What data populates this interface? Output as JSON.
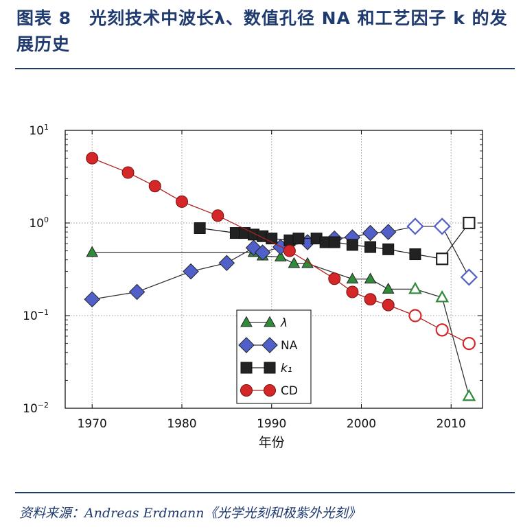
{
  "header": {
    "title": "图表 8　光刻技术中波长λ、数值孔径 NA 和工艺因子 k 的发展历史"
  },
  "footer": {
    "source": "资料来源：Andreas Erdmann《光学光刻和极紫外光刻》"
  },
  "colors": {
    "title_blue": "#1f3a6e",
    "lambda_green": "#2f8a3a",
    "na_blue": "#5060c8",
    "k1_black": "#222222",
    "cd_red": "#d42828",
    "line_dark": "#333333",
    "line_red": "#b02020"
  },
  "chart_data": {
    "type": "line",
    "xlabel": "年份",
    "ylabel": "",
    "xlim": [
      1967,
      2013.5
    ],
    "ylim": [
      0.01,
      10
    ],
    "yscale": "log",
    "grid": true,
    "legend_position": "lower-center",
    "x_ticks": [
      "1970",
      "1980",
      "1990",
      "2000",
      "2010"
    ],
    "y_ticks": [
      {
        "base": "10",
        "exp": "1"
      },
      {
        "base": "10",
        "exp": "0"
      },
      {
        "base": "10",
        "exp": "−1"
      },
      {
        "base": "10",
        "exp": "−2"
      }
    ],
    "series": [
      {
        "name": "λ",
        "marker": "triangle",
        "color": "#2f8a3a",
        "x": [
          1970,
          1988,
          1989,
          1991,
          1992.5,
          1994,
          1999,
          2001,
          2003,
          2006,
          2009,
          2012
        ],
        "y": [
          0.48,
          0.48,
          0.44,
          0.43,
          0.365,
          0.365,
          0.248,
          0.248,
          0.193,
          0.193,
          0.157,
          0.0135
        ],
        "hollow_from_index": 9
      },
      {
        "name": "NA",
        "marker": "diamond",
        "color": "#5060c8",
        "x": [
          1970,
          1975,
          1981,
          1985,
          1988,
          1989,
          1991,
          1994,
          1997,
          1999,
          2001,
          2003,
          2006,
          2009,
          2012
        ],
        "y": [
          0.15,
          0.18,
          0.3,
          0.37,
          0.54,
          0.48,
          0.55,
          0.62,
          0.68,
          0.7,
          0.78,
          0.8,
          0.92,
          0.92,
          0.26
        ],
        "hollow_from_index": 12
      },
      {
        "name": "k₁",
        "marker": "square",
        "color": "#222222",
        "x": [
          1982,
          1986,
          1987,
          1988,
          1989,
          1990,
          1992,
          1993,
          1995,
          1996,
          1997,
          1999,
          2001,
          2003,
          2006,
          2009,
          2012
        ],
        "y": [
          0.88,
          0.78,
          0.78,
          0.75,
          0.72,
          0.68,
          0.65,
          0.68,
          0.68,
          0.62,
          0.62,
          0.58,
          0.55,
          0.52,
          0.46,
          0.41,
          1.0
        ],
        "hollow_from_index": 15
      },
      {
        "name": "CD",
        "marker": "circle",
        "color": "#d42828",
        "x": [
          1970,
          1974,
          1977,
          1980,
          1984,
          1992,
          1997,
          1999,
          2001,
          2003,
          2006,
          2009,
          2012
        ],
        "y": [
          5.0,
          3.5,
          2.5,
          1.7,
          1.2,
          0.5,
          0.25,
          0.18,
          0.15,
          0.13,
          0.1,
          0.07,
          0.05
        ],
        "hollow_from_index": 10
      }
    ]
  }
}
